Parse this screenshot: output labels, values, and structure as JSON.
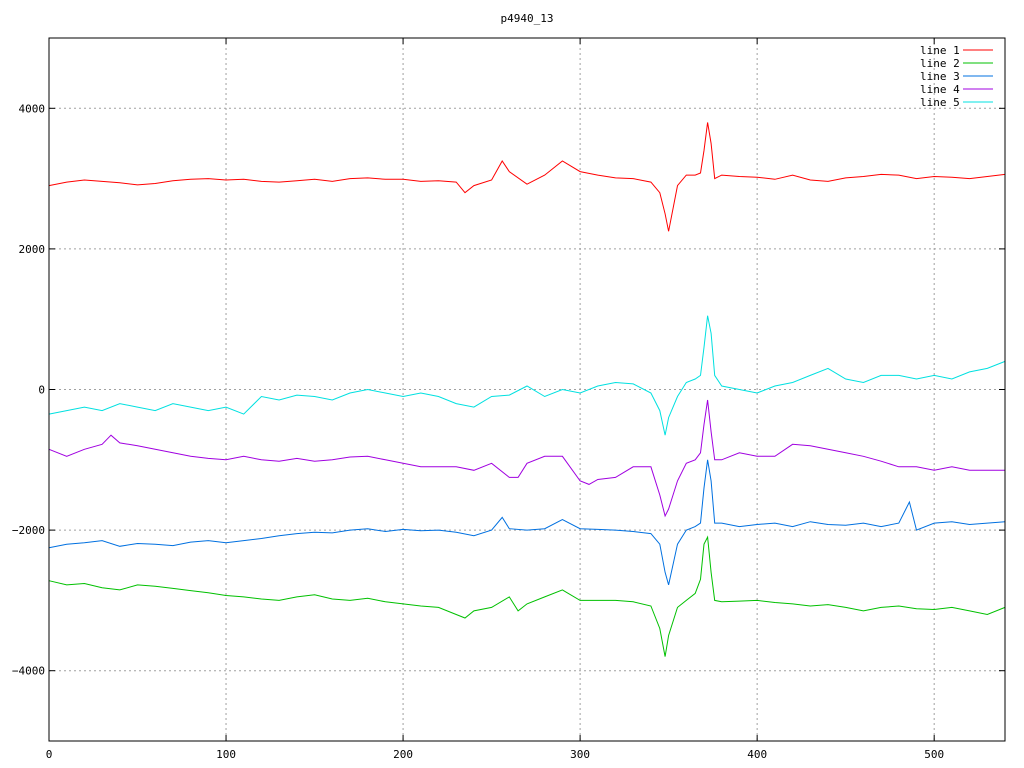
{
  "chart_data": {
    "type": "line",
    "title": "p4940_13",
    "xlabel": "",
    "ylabel": "",
    "xlim": [
      0,
      540
    ],
    "ylim": [
      -5000,
      5000
    ],
    "xticks": [
      0,
      100,
      200,
      300,
      400,
      500
    ],
    "yticks": [
      -4000,
      -2000,
      0,
      2000,
      4000
    ],
    "grid": true,
    "legend_position": "top-right",
    "series": [
      {
        "name": "line 1",
        "color": "#ff0000",
        "x": [
          0,
          10,
          20,
          30,
          40,
          50,
          60,
          70,
          80,
          90,
          100,
          110,
          120,
          130,
          140,
          150,
          160,
          170,
          180,
          190,
          200,
          210,
          220,
          230,
          235,
          240,
          250,
          256,
          260,
          270,
          280,
          290,
          300,
          310,
          320,
          330,
          340,
          345,
          348,
          350,
          355,
          360,
          365,
          368,
          370,
          372,
          374,
          376,
          380,
          390,
          400,
          410,
          420,
          430,
          440,
          450,
          460,
          470,
          480,
          490,
          500,
          510,
          520,
          530,
          540
        ],
        "y": [
          2900,
          2950,
          2980,
          2960,
          2940,
          2910,
          2930,
          2970,
          2990,
          3000,
          2980,
          2990,
          2960,
          2950,
          2970,
          2990,
          2960,
          3000,
          3010,
          2990,
          2990,
          2960,
          2970,
          2950,
          2800,
          2900,
          2980,
          3250,
          3100,
          2920,
          3050,
          3250,
          3100,
          3050,
          3010,
          3000,
          2950,
          2800,
          2500,
          2250,
          2900,
          3050,
          3050,
          3080,
          3400,
          3800,
          3500,
          3000,
          3050,
          3030,
          3020,
          2990,
          3050,
          2980,
          2960,
          3010,
          3030,
          3060,
          3050,
          3000,
          3030,
          3020,
          3000,
          3030,
          3060
        ]
      },
      {
        "name": "line 2",
        "color": "#00c000",
        "x": [
          0,
          10,
          20,
          30,
          40,
          50,
          60,
          70,
          80,
          90,
          100,
          110,
          120,
          130,
          140,
          150,
          160,
          170,
          180,
          190,
          200,
          210,
          220,
          230,
          235,
          240,
          250,
          260,
          265,
          270,
          280,
          290,
          300,
          310,
          320,
          330,
          340,
          345,
          348,
          350,
          355,
          360,
          365,
          368,
          370,
          372,
          374,
          376,
          380,
          390,
          400,
          410,
          420,
          430,
          440,
          450,
          460,
          470,
          480,
          490,
          500,
          510,
          520,
          530,
          540
        ],
        "y": [
          -2720,
          -2780,
          -2760,
          -2820,
          -2850,
          -2780,
          -2800,
          -2830,
          -2860,
          -2890,
          -2930,
          -2950,
          -2980,
          -3000,
          -2950,
          -2920,
          -2980,
          -3000,
          -2970,
          -3020,
          -3050,
          -3080,
          -3100,
          -3200,
          -3250,
          -3150,
          -3100,
          -2950,
          -3150,
          -3050,
          -2950,
          -2850,
          -3000,
          -3000,
          -3000,
          -3020,
          -3080,
          -3400,
          -3800,
          -3500,
          -3100,
          -3000,
          -2900,
          -2700,
          -2200,
          -2100,
          -2600,
          -3000,
          -3020,
          -3010,
          -3000,
          -3030,
          -3050,
          -3080,
          -3060,
          -3100,
          -3150,
          -3100,
          -3080,
          -3120,
          -3130,
          -3100,
          -3150,
          -3200,
          -3100
        ]
      },
      {
        "name": "line 3",
        "color": "#0070e0",
        "x": [
          0,
          10,
          20,
          30,
          40,
          50,
          60,
          70,
          80,
          90,
          100,
          110,
          120,
          130,
          140,
          150,
          160,
          170,
          180,
          190,
          200,
          210,
          220,
          230,
          240,
          250,
          256,
          260,
          270,
          280,
          290,
          300,
          310,
          320,
          330,
          340,
          345,
          348,
          350,
          355,
          360,
          365,
          368,
          370,
          372,
          374,
          376,
          380,
          390,
          400,
          410,
          420,
          430,
          440,
          450,
          460,
          470,
          480,
          484,
          486,
          490,
          500,
          510,
          520,
          530,
          540
        ],
        "y": [
          -2250,
          -2200,
          -2180,
          -2150,
          -2230,
          -2190,
          -2200,
          -2220,
          -2170,
          -2150,
          -2180,
          -2150,
          -2120,
          -2080,
          -2050,
          -2030,
          -2040,
          -2000,
          -1980,
          -2020,
          -1990,
          -2010,
          -2000,
          -2030,
          -2080,
          -2000,
          -1820,
          -1980,
          -2000,
          -1980,
          -1850,
          -1980,
          -1990,
          -2000,
          -2020,
          -2050,
          -2200,
          -2600,
          -2780,
          -2200,
          -2000,
          -1950,
          -1900,
          -1400,
          -1000,
          -1300,
          -1900,
          -1900,
          -1950,
          -1920,
          -1900,
          -1950,
          -1880,
          -1920,
          -1930,
          -1900,
          -1950,
          -1900,
          -1700,
          -1600,
          -2000,
          -1900,
          -1880,
          -1920,
          -1900,
          -1880
        ]
      },
      {
        "name": "line 4",
        "color": "#a000e0",
        "x": [
          0,
          10,
          20,
          30,
          35,
          40,
          50,
          60,
          70,
          80,
          90,
          100,
          110,
          120,
          130,
          140,
          150,
          160,
          170,
          180,
          190,
          200,
          210,
          220,
          230,
          240,
          250,
          260,
          265,
          270,
          280,
          290,
          300,
          305,
          310,
          320,
          330,
          340,
          345,
          348,
          350,
          355,
          360,
          365,
          368,
          370,
          372,
          374,
          376,
          380,
          390,
          400,
          410,
          420,
          430,
          440,
          450,
          460,
          470,
          480,
          490,
          500,
          510,
          520,
          530,
          540
        ],
        "y": [
          -850,
          -950,
          -850,
          -780,
          -650,
          -760,
          -800,
          -850,
          -900,
          -950,
          -980,
          -1000,
          -950,
          -1000,
          -1020,
          -980,
          -1020,
          -1000,
          -960,
          -950,
          -1000,
          -1050,
          -1100,
          -1100,
          -1100,
          -1150,
          -1050,
          -1250,
          -1250,
          -1050,
          -950,
          -950,
          -1300,
          -1350,
          -1280,
          -1250,
          -1100,
          -1100,
          -1500,
          -1800,
          -1700,
          -1300,
          -1050,
          -1000,
          -900,
          -500,
          -150,
          -600,
          -1000,
          -1000,
          -900,
          -950,
          -950,
          -780,
          -800,
          -850,
          -900,
          -950,
          -1020,
          -1100,
          -1100,
          -1150,
          -1100,
          -1150,
          -1150,
          -1150
        ]
      },
      {
        "name": "line 5",
        "color": "#00e0e0",
        "x": [
          0,
          10,
          20,
          30,
          40,
          50,
          60,
          70,
          80,
          90,
          100,
          110,
          120,
          130,
          140,
          150,
          160,
          170,
          180,
          190,
          200,
          210,
          220,
          230,
          240,
          250,
          260,
          270,
          280,
          290,
          300,
          310,
          320,
          330,
          340,
          345,
          348,
          350,
          355,
          360,
          365,
          368,
          370,
          372,
          374,
          376,
          380,
          390,
          400,
          410,
          420,
          430,
          440,
          450,
          460,
          470,
          480,
          490,
          500,
          510,
          520,
          530,
          540
        ],
        "y": [
          -350,
          -300,
          -250,
          -300,
          -200,
          -250,
          -300,
          -200,
          -250,
          -300,
          -250,
          -350,
          -100,
          -150,
          -80,
          -100,
          -150,
          -50,
          0,
          -50,
          -100,
          -50,
          -100,
          -200,
          -250,
          -100,
          -80,
          50,
          -100,
          0,
          -50,
          50,
          100,
          80,
          -50,
          -300,
          -650,
          -400,
          -100,
          100,
          150,
          200,
          600,
          1050,
          800,
          200,
          50,
          0,
          -50,
          50,
          100,
          200,
          300,
          150,
          100,
          200,
          200,
          150,
          200,
          150,
          250,
          300,
          400
        ]
      }
    ]
  }
}
